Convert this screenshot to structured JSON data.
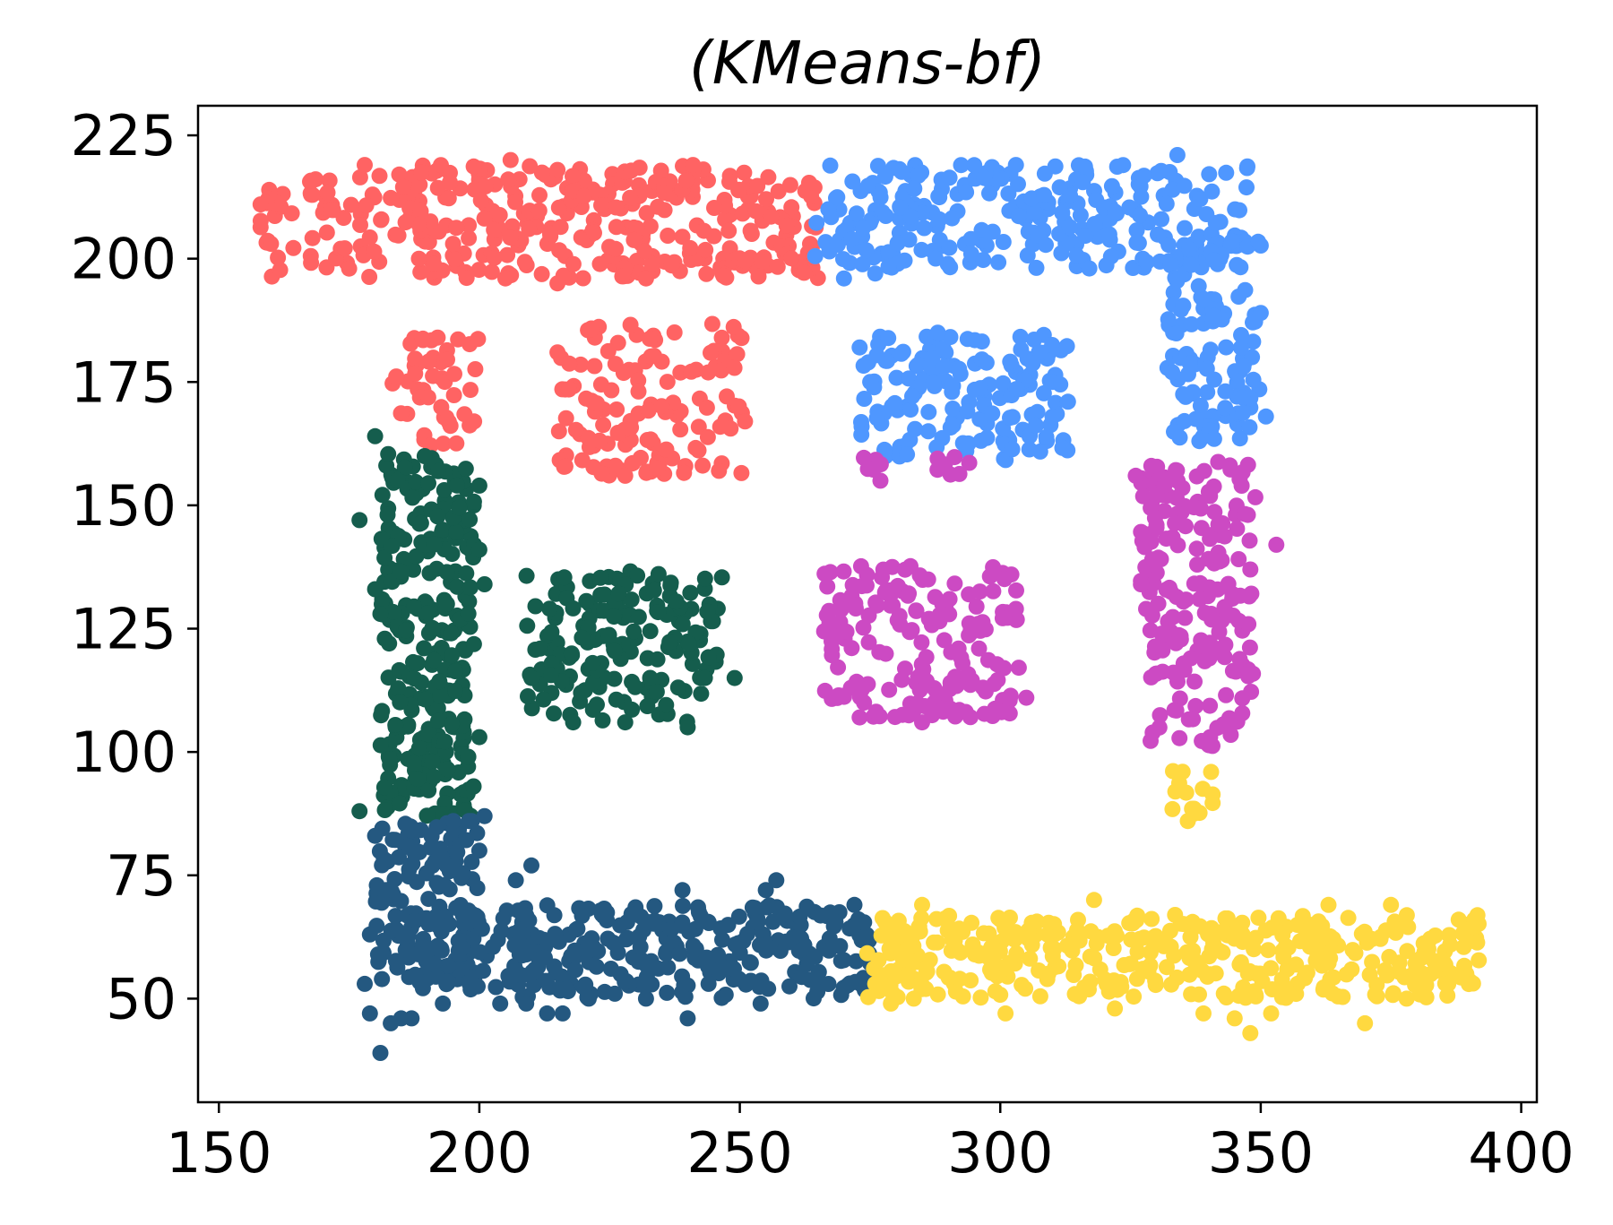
{
  "chart_data": {
    "type": "scatter",
    "title": "(KMeans-bf)",
    "xlabel": "",
    "ylabel": "",
    "xlim": [
      146,
      403
    ],
    "ylim": [
      29,
      231
    ],
    "xticks": [
      150,
      200,
      250,
      300,
      350,
      400
    ],
    "yticks": [
      50,
      75,
      100,
      125,
      150,
      175,
      200,
      225
    ],
    "grid": false,
    "legend": "none",
    "point_radius": 9,
    "clusters": [
      {
        "color": "#FF6363",
        "regions": [
          {
            "x": [
              158,
              265
            ],
            "y": [
              196,
              219
            ],
            "n": 360
          },
          {
            "x": [
              183,
              200
            ],
            "y": [
              162,
              184
            ],
            "n": 45
          },
          {
            "x": [
              215,
              251
            ],
            "y": [
              156,
              187
            ],
            "n": 130
          }
        ],
        "points": [
          [
            206,
            220
          ],
          [
            178,
            219
          ],
          [
            215,
            218
          ],
          [
            241,
            219
          ],
          [
            158,
            211
          ],
          [
            160,
            203
          ],
          [
            175,
            198
          ],
          [
            215,
            195
          ],
          [
            205,
            196
          ],
          [
            232,
            196
          ],
          [
            192,
            184
          ],
          [
            199,
            167
          ],
          [
            228,
            156
          ],
          [
            246,
            157
          ],
          [
            251,
            167
          ],
          [
            215,
            181
          ]
        ]
      },
      {
        "color": "#4F97FF",
        "regions": [
          {
            "x": [
              264,
              348
            ],
            "y": [
              198,
              219
            ],
            "n": 260
          },
          {
            "x": [
              332,
              350
            ],
            "y": [
              163,
              204
            ],
            "n": 120
          },
          {
            "x": [
              273,
              313
            ],
            "y": [
              159,
              185
            ],
            "n": 160
          }
        ],
        "points": [
          [
            334,
            221
          ],
          [
            303,
            219
          ],
          [
            270,
            196
          ],
          [
            276,
            197
          ],
          [
            350,
            189
          ],
          [
            351,
            168
          ],
          [
            333,
            177
          ],
          [
            313,
            171
          ],
          [
            288,
            185
          ],
          [
            273,
            182
          ]
        ]
      },
      {
        "color": "#CC4AC3",
        "regions": [
          {
            "x": [
              327,
              349
            ],
            "y": [
              101,
              159
            ],
            "n": 190
          },
          {
            "x": [
              266,
              304
            ],
            "y": [
              107,
              138
            ],
            "n": 180
          },
          {
            "x": [
              273,
              298
            ],
            "y": [
              156,
              160
            ],
            "n": 14
          }
        ],
        "points": [
          [
            353,
            142
          ],
          [
            348,
            137
          ],
          [
            326,
            156
          ],
          [
            329,
            158
          ],
          [
            330,
            146
          ],
          [
            328,
            129
          ],
          [
            327,
            134
          ],
          [
            305,
            111
          ],
          [
            285,
            106
          ],
          [
            273,
            107
          ],
          [
            303,
            129
          ],
          [
            277,
            155
          ]
        ]
      },
      {
        "color": "#155D4D",
        "regions": [
          {
            "x": [
              181,
              199
            ],
            "y": [
              87,
              161
            ],
            "n": 280
          },
          {
            "x": [
              209,
              247
            ],
            "y": [
              106,
              137
            ],
            "n": 160
          }
        ],
        "points": [
          [
            177,
            147
          ],
          [
            180,
            164
          ],
          [
            200,
            154
          ],
          [
            200,
            141
          ],
          [
            201,
            134
          ],
          [
            200,
            103
          ],
          [
            180,
            133
          ],
          [
            181,
            128
          ],
          [
            177,
            88
          ],
          [
            210,
            115
          ],
          [
            218,
            106
          ],
          [
            228,
            106
          ],
          [
            240,
            105
          ],
          [
            249,
            115
          ]
        ]
      },
      {
        "color": "#245880",
        "regions": [
          {
            "x": [
              180,
              200
            ],
            "y": [
              53,
              86
            ],
            "n": 120
          },
          {
            "x": [
              186,
              275
            ],
            "y": [
              50,
              69
            ],
            "n": 330
          }
        ],
        "points": [
          [
            181,
            39
          ],
          [
            183,
            45
          ],
          [
            185,
            46
          ],
          [
            187,
            46
          ],
          [
            179,
            47
          ],
          [
            178,
            53
          ],
          [
            179,
            63
          ],
          [
            180,
            83
          ],
          [
            195,
            86
          ],
          [
            198,
            86
          ],
          [
            201,
            87
          ],
          [
            200,
            80
          ],
          [
            207,
            74
          ],
          [
            210,
            77
          ],
          [
            240,
            46
          ],
          [
            254,
            49
          ],
          [
            239,
            72
          ],
          [
            255,
            72
          ],
          [
            257,
            74
          ],
          [
            272,
            69
          ],
          [
            244,
            53
          ],
          [
            226,
            51
          ],
          [
            216,
            47
          ],
          [
            213,
            47
          ],
          [
            204,
            49
          ],
          [
            209,
            49
          ],
          [
            221,
            50
          ],
          [
            232,
            50
          ],
          [
            193,
            49
          ]
        ]
      },
      {
        "color": "#FFD940",
        "regions": [
          {
            "x": [
              274,
              392
            ],
            "y": [
              50,
              67
            ],
            "n": 400
          },
          {
            "x": [
              333,
              342
            ],
            "y": [
              86,
              97
            ],
            "n": 14
          }
        ],
        "points": [
          [
            276,
            53
          ],
          [
            279,
            49
          ],
          [
            301,
            47
          ],
          [
            322,
            48
          ],
          [
            339,
            47
          ],
          [
            345,
            46
          ],
          [
            348,
            43
          ],
          [
            352,
            47
          ],
          [
            370,
            45
          ],
          [
            378,
            50
          ],
          [
            386,
            53
          ],
          [
            391,
            66
          ],
          [
            388,
            66
          ],
          [
            375,
            69
          ],
          [
            363,
            69
          ],
          [
            318,
            70
          ],
          [
            285,
            69
          ],
          [
            336,
            86
          ],
          [
            335,
            96
          ]
        ]
      }
    ]
  }
}
